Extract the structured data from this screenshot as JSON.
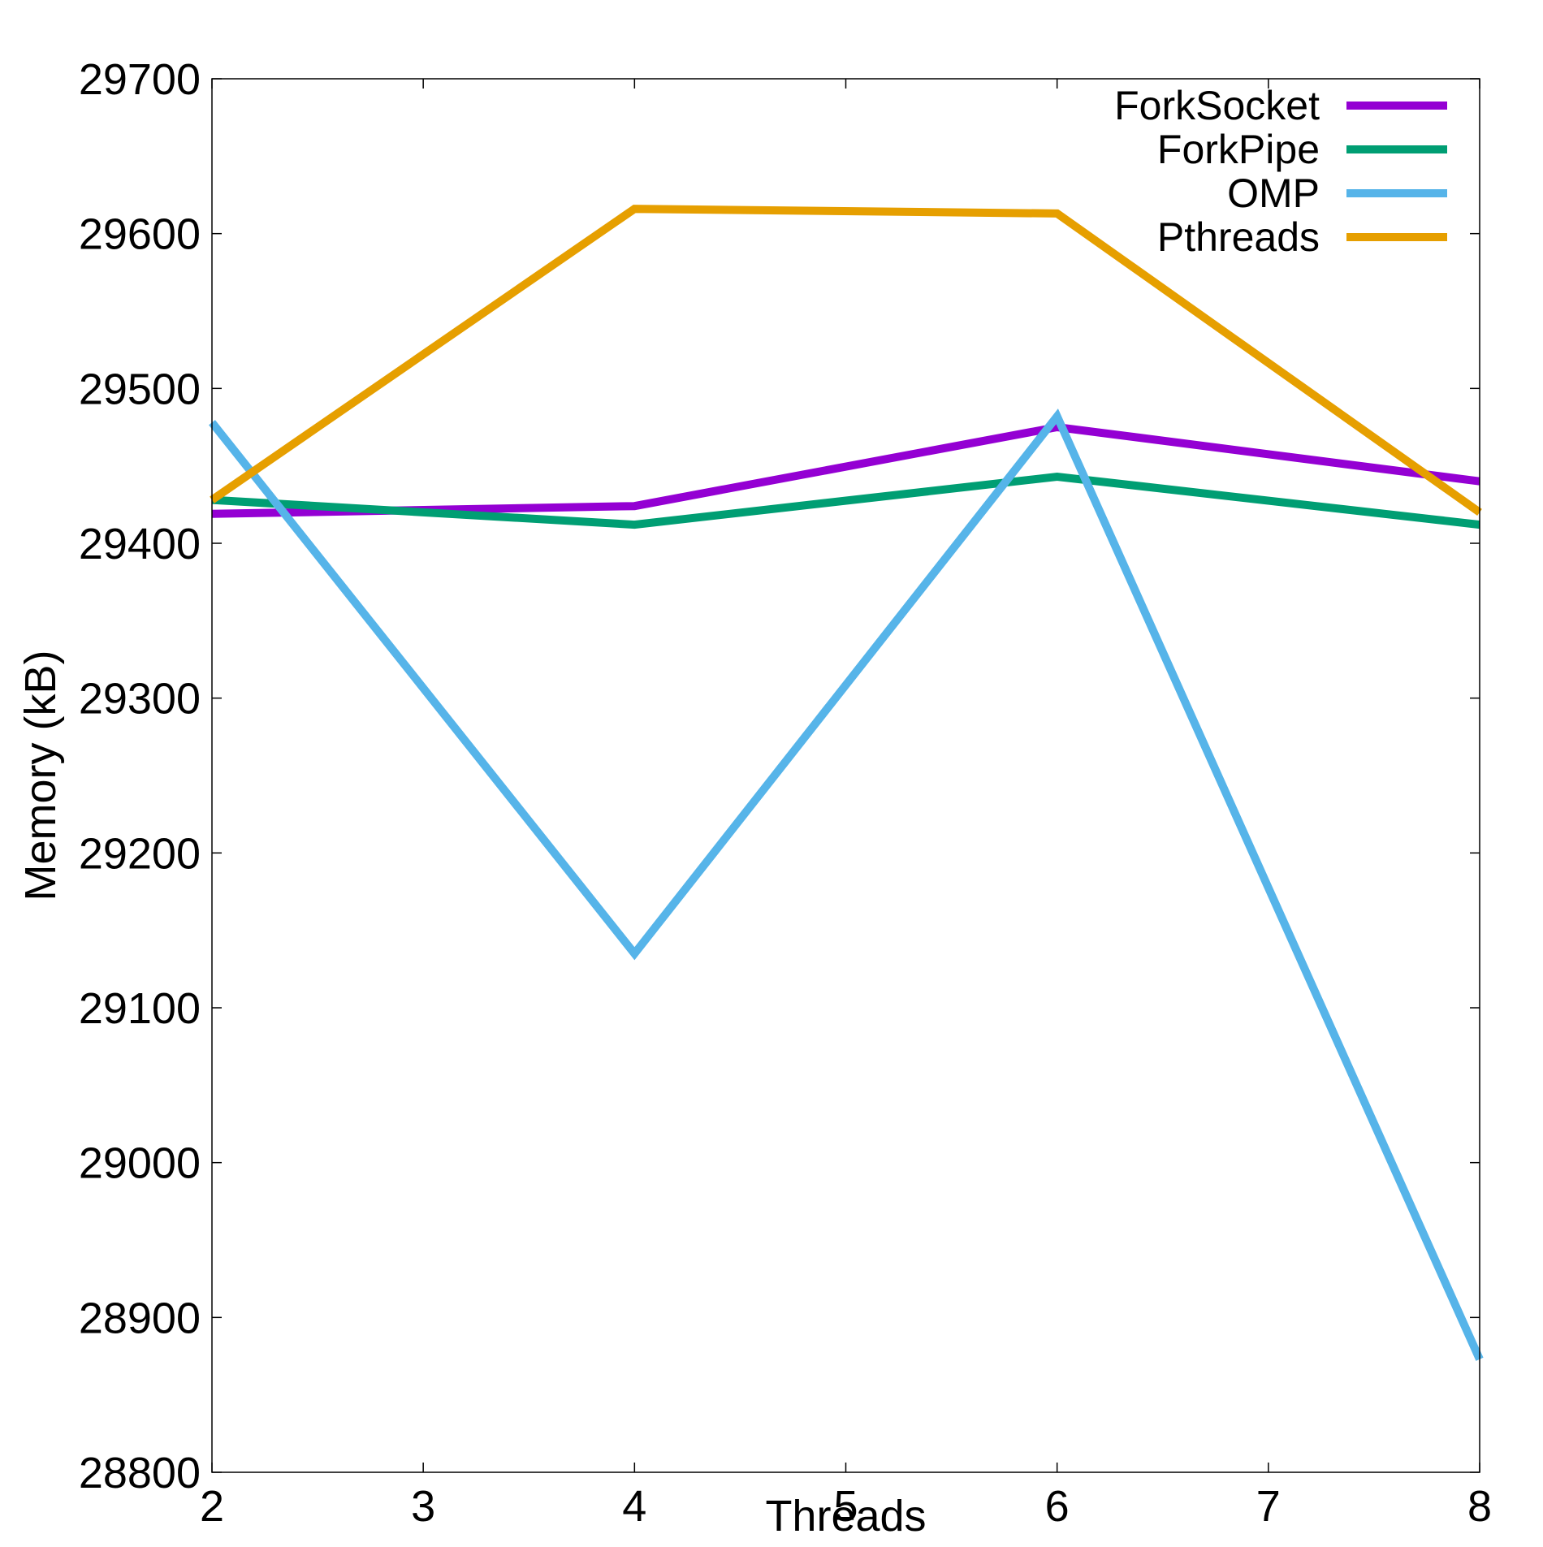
{
  "chart_data": {
    "type": "line",
    "xlabel": "Threads",
    "ylabel": "Memory (kB)",
    "xlim": [
      2,
      8
    ],
    "ylim": [
      28800,
      29700
    ],
    "xticks": [
      "2",
      "3",
      "4",
      "5",
      "6",
      "7",
      "8"
    ],
    "yticks": [
      "28800",
      "28900",
      "29000",
      "29100",
      "29200",
      "29300",
      "29400",
      "29500",
      "29600",
      "29700"
    ],
    "grid": false,
    "legend_position": "top-right",
    "x": [
      2,
      4,
      6,
      8
    ],
    "series": [
      {
        "name": "ForkSocket",
        "color": "#9400D3",
        "values": [
          29419,
          29424,
          29475,
          29440
        ]
      },
      {
        "name": "ForkPipe",
        "color": "#009E73",
        "values": [
          29428,
          29412,
          29443,
          29412
        ]
      },
      {
        "name": "OMP",
        "color": "#56B4E9",
        "values": [
          29478,
          29135,
          29482,
          28873
        ]
      },
      {
        "name": "Pthreads",
        "color": "#E69F00",
        "values": [
          29428,
          29616,
          29613,
          29420
        ]
      }
    ]
  }
}
